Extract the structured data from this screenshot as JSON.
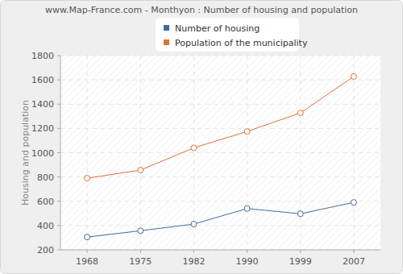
{
  "chart_data": {
    "type": "line",
    "title": "www.Map-France.com - Monthyon : Number of housing and population",
    "y_label": "Housing and population",
    "categories": [
      "1968",
      "1975",
      "1982",
      "1990",
      "1999",
      "2007"
    ],
    "series": [
      {
        "name": "Number of housing",
        "color": "#3e6d9c",
        "marker": "circle",
        "values": [
          305,
          357,
          412,
          540,
          497,
          591
        ]
      },
      {
        "name": "Population of the municipality",
        "color": "#e0703a",
        "marker": "circle",
        "values": [
          790,
          857,
          1040,
          1175,
          1328,
          1628
        ]
      }
    ],
    "ylim": [
      200,
      1800
    ],
    "yticks": [
      200,
      400,
      600,
      800,
      1000,
      1200,
      1400,
      1600,
      1800
    ],
    "grid": true,
    "legend": "top"
  }
}
